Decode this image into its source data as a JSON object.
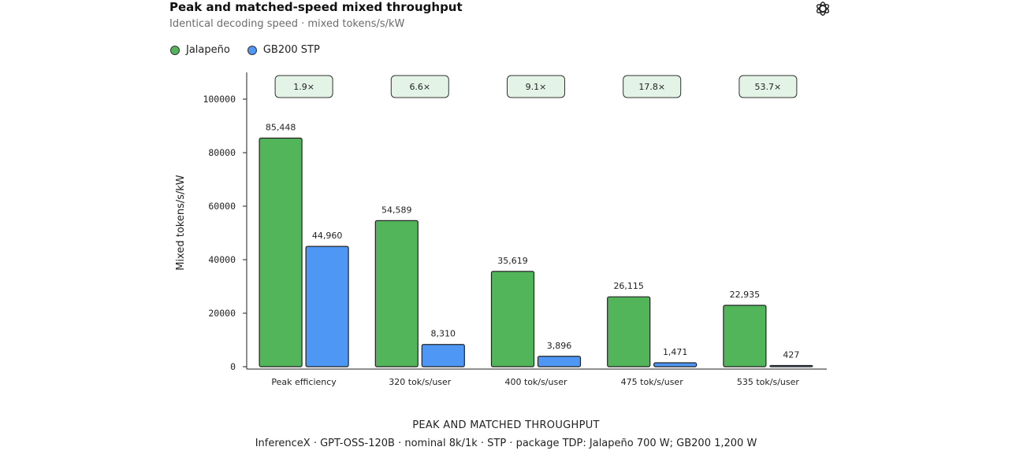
{
  "header": {
    "title": "Peak and matched-speed mixed throughput",
    "subtitle": "Identical decoding speed · mixed tokens/s/kW"
  },
  "legend": {
    "items": [
      {
        "label": "Jalapeño",
        "color": "#52b55a"
      },
      {
        "label": "GB200 STP",
        "color": "#4f97f5"
      }
    ]
  },
  "footer": {
    "title": "PEAK AND MATCHED THROUGHPUT",
    "note": "InferenceX · GPT-OSS-120B · nominal 8k/1k · STP · package TDP: Jalapeño 700 W; GB200 1,200 W"
  },
  "logo_icon": "openai-logo-icon",
  "chart_data": {
    "type": "bar",
    "title": "Peak and matched-speed mixed throughput",
    "subtitle": "Identical decoding speed · mixed tokens/s/kW",
    "xlabel": "PEAK AND MATCHED THROUGHPUT",
    "ylabel": "Mixed tokens/s/kW",
    "ylim": [
      0,
      110000
    ],
    "yticks": [
      0,
      20000,
      40000,
      60000,
      80000,
      100000
    ],
    "ytick_labels": [
      "0",
      "20000",
      "40000",
      "60000",
      "80000",
      "100000"
    ],
    "grid": false,
    "legend_position": "top-left",
    "categories": [
      "Peak efficiency",
      "320 tok/s/user",
      "400 tok/s/user",
      "475 tok/s/user",
      "535 tok/s/user"
    ],
    "series": [
      {
        "name": "Jalapeño",
        "color": "#52b55a",
        "values": [
          85448,
          54589,
          35619,
          26115,
          22935
        ],
        "labels": [
          "85,448",
          "54,589",
          "35,619",
          "26,115",
          "22,935"
        ]
      },
      {
        "name": "GB200 STP",
        "color": "#4f97f5",
        "values": [
          44960,
          8310,
          3896,
          1471,
          427
        ],
        "labels": [
          "44,960",
          "8,310",
          "3,896",
          "1,471",
          "427"
        ]
      }
    ],
    "ratio_badges": [
      "1.9×",
      "6.6×",
      "9.1×",
      "17.8×",
      "53.7×"
    ],
    "badge_color": "#e3f3e6"
  }
}
